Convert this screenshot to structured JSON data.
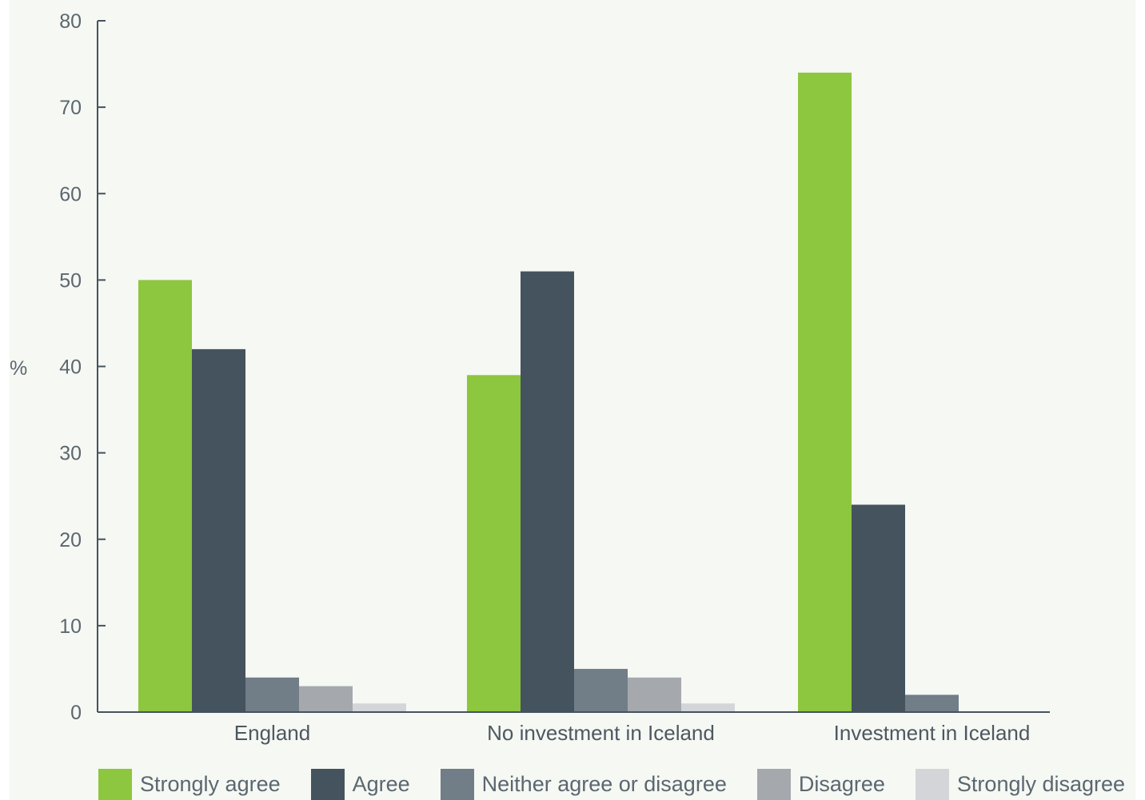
{
  "chart_data": {
    "type": "bar",
    "title": "",
    "xlabel": "",
    "ylabel": "%",
    "ylim": [
      0,
      80
    ],
    "yticks": [
      0,
      10,
      20,
      30,
      40,
      50,
      60,
      70,
      80
    ],
    "grid": false,
    "legend_position": "bottom",
    "categories": [
      "England",
      "No investment in Iceland",
      "Investment in Iceland"
    ],
    "series": [
      {
        "name": "Strongly agree",
        "color": "#8dc63f",
        "values": [
          50,
          39,
          74
        ]
      },
      {
        "name": "Agree",
        "color": "#44535e",
        "values": [
          42,
          51,
          24
        ]
      },
      {
        "name": "Neither agree or disagree",
        "color": "#717d87",
        "values": [
          4,
          5,
          2
        ]
      },
      {
        "name": "Disagree",
        "color": "#a5a9ae",
        "values": [
          3,
          4,
          0
        ]
      },
      {
        "name": "Strongly disagree",
        "color": "#d3d5d8",
        "values": [
          1,
          1,
          0
        ]
      }
    ]
  },
  "colors": {
    "background": "#f6f8f3",
    "axis": "#44535e"
  }
}
